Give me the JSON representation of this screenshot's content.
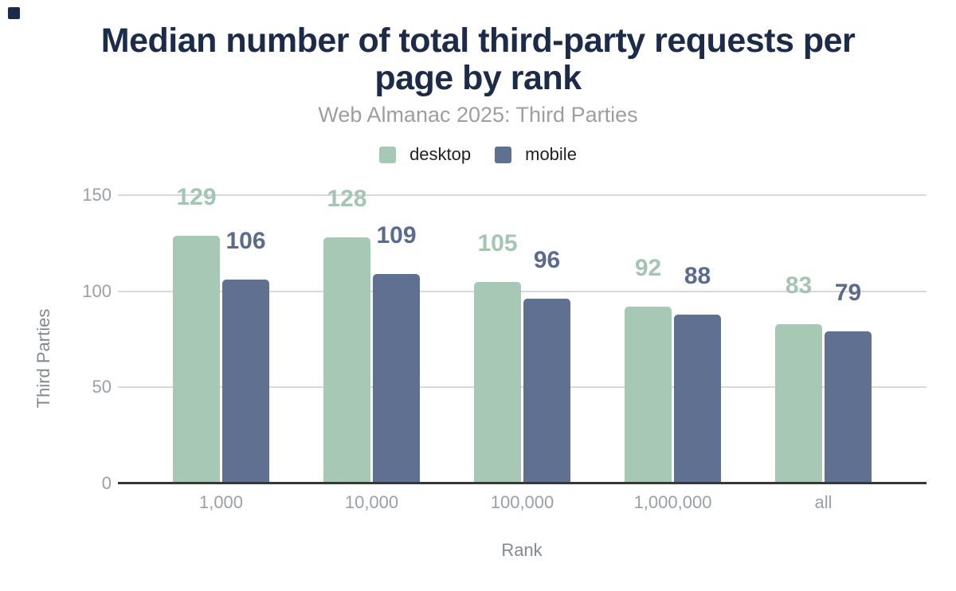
{
  "colors": {
    "title": "#1b2b49",
    "subtitle": "#9e9e9e",
    "tick": "#9aa0a6",
    "axis_title": "#82898f",
    "gridline": "#d9d9d9",
    "axis_line": "#373737",
    "legend_text": "#212121",
    "desktop": "#a6c8b4",
    "mobile": "#5f7090"
  },
  "header": {
    "title_lines": [
      "Median number of total third-party requests per",
      "page by rank"
    ],
    "subtitle": "Web Almanac 2025: Third Parties"
  },
  "chart_data": {
    "type": "bar",
    "title": "Median number of total third-party requests per page by rank",
    "subtitle": "Web Almanac 2025: Third Parties",
    "xlabel": "Rank",
    "ylabel": "Third Parties",
    "categories": [
      "1,000",
      "10,000",
      "100,000",
      "1,000,000",
      "all"
    ],
    "series": [
      {
        "name": "desktop",
        "color": "#a6c8b4",
        "label_color": "#a3c5b1",
        "values": [
          129,
          128,
          105,
          92,
          83
        ]
      },
      {
        "name": "mobile",
        "color": "#5f7090",
        "label_color": "#5a6b8d",
        "values": [
          106,
          109,
          96,
          88,
          79
        ]
      }
    ],
    "ylim": [
      0,
      150
    ],
    "yticks": [
      0,
      50,
      100,
      150
    ],
    "grid": "horizontal",
    "legend_position": "top",
    "data_labels": "above-bars"
  }
}
